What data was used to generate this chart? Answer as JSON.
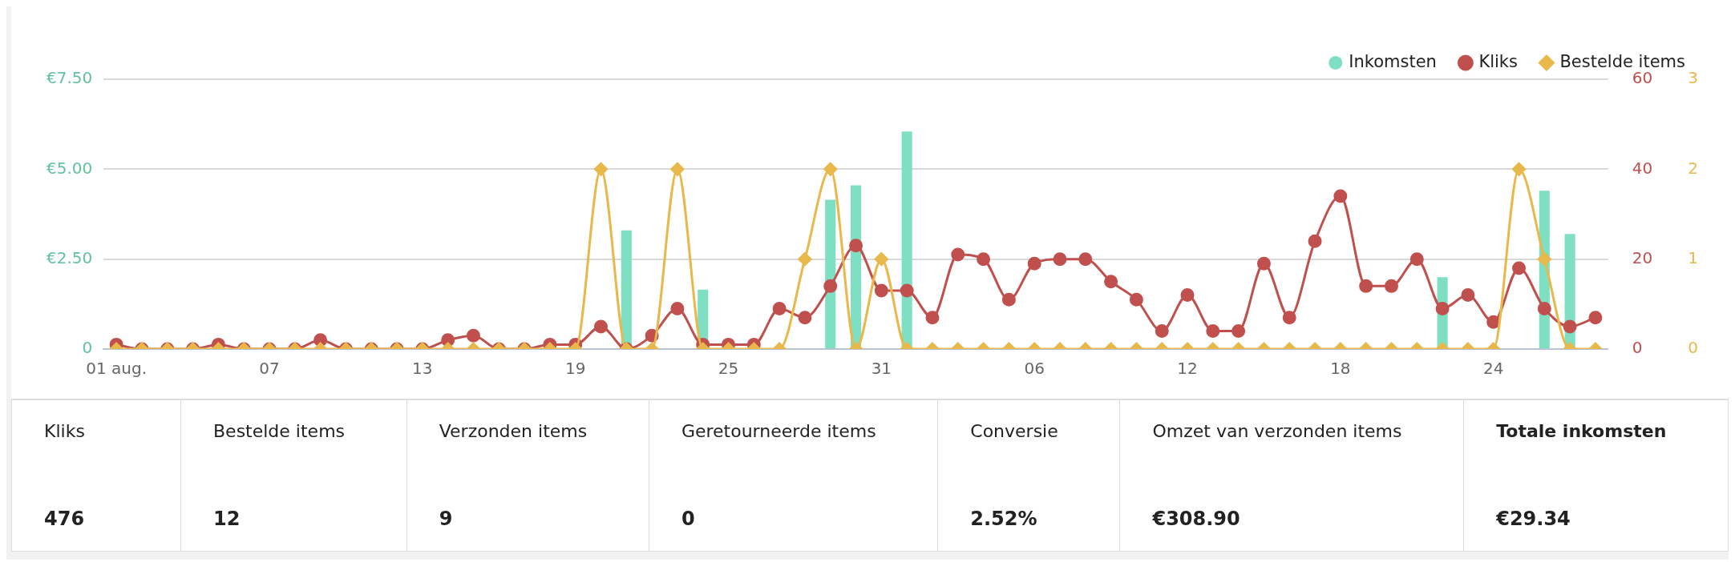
{
  "chart_data": [
    {
      "type": "bar",
      "categories": [
        "01 aug.",
        null,
        null,
        null,
        null,
        null,
        "07",
        null,
        null,
        null,
        null,
        null,
        "13",
        null,
        null,
        null,
        null,
        null,
        "19",
        null,
        null,
        null,
        null,
        null,
        "25",
        null,
        null,
        null,
        null,
        null,
        "31",
        null,
        null,
        null,
        null,
        null,
        "06",
        null,
        null,
        null,
        null,
        null,
        "12",
        null,
        null,
        null,
        null,
        null,
        "18",
        null,
        null,
        null,
        null,
        null,
        "24",
        null,
        null,
        null,
        null
      ],
      "series": [
        {
          "name": "Inkomsten",
          "type": "bar",
          "color": "#7fdfc3",
          "marker": "circle",
          "values": [
            0,
            0,
            0,
            0,
            0,
            0,
            0,
            0,
            0,
            0,
            0,
            0,
            0,
            0,
            0,
            0,
            0,
            0,
            0,
            0,
            3.3,
            0,
            0,
            1.65,
            0,
            0,
            0,
            0,
            4.15,
            4.55,
            0,
            6.05,
            0,
            0,
            0,
            0,
            0,
            0,
            0,
            0,
            0,
            0,
            0,
            0,
            0,
            0,
            0,
            0,
            0,
            0,
            0,
            0,
            2.0,
            0,
            0,
            0,
            4.4,
            3.2,
            0
          ]
        },
        {
          "name": "Kliks",
          "type": "line",
          "axis": "y2",
          "color": "#c0504d",
          "marker": "circle",
          "values": [
            1,
            0,
            0,
            0,
            1,
            0,
            0,
            0,
            2,
            0,
            0,
            0,
            0,
            2,
            3,
            0,
            0,
            1,
            1,
            5,
            0,
            3,
            9,
            1,
            1,
            1,
            9,
            7,
            14,
            23,
            13,
            13,
            7,
            21,
            20,
            11,
            19,
            20,
            20,
            15,
            11,
            4,
            12,
            4,
            4,
            19,
            7,
            24,
            34,
            14,
            14,
            20,
            9,
            12,
            6,
            18,
            9,
            5,
            7
          ]
        },
        {
          "name": "Bestelde items",
          "type": "line",
          "axis": "y3",
          "color": "#e8b84b",
          "marker": "diamond",
          "values": [
            0,
            0,
            0,
            0,
            0,
            0,
            0,
            0,
            0,
            0,
            0,
            0,
            0,
            0,
            0,
            0,
            0,
            0,
            0,
            2,
            0,
            0,
            2,
            0,
            0,
            0,
            0,
            1,
            2,
            0,
            1,
            0,
            0,
            0,
            0,
            0,
            0,
            0,
            0,
            0,
            0,
            0,
            0,
            0,
            0,
            0,
            0,
            0,
            0,
            0,
            0,
            0,
            0,
            0,
            0,
            2,
            1,
            0,
            0
          ]
        }
      ],
      "ylim": [
        0,
        7.5
      ],
      "yticks": [
        0,
        {
          "value": 2.5,
          "label": "€2.50"
        },
        {
          "value": 5,
          "label": "€5.00"
        },
        {
          "value": 7.5,
          "label": "€7.50"
        }
      ],
      "y2lim": [
        0,
        60
      ],
      "y2ticks": [
        0,
        20,
        40,
        60
      ],
      "y3lim": [
        0,
        3
      ],
      "y3ticks": [
        0,
        1,
        2,
        3
      ],
      "grid": "y",
      "legend": "top right"
    },
    {
      "type": "other",
      "categories": [
        "Kliks",
        "Bestelde items",
        "Verzonden items",
        "Geretourneerde items",
        "Conversie",
        "Omzet van verzonden items",
        "Totale inkomsten"
      ],
      "value_labels": [
        "476",
        "12",
        "9",
        "0",
        "2.52%",
        "€308.90",
        "€29.34"
      ]
    }
  ]
}
